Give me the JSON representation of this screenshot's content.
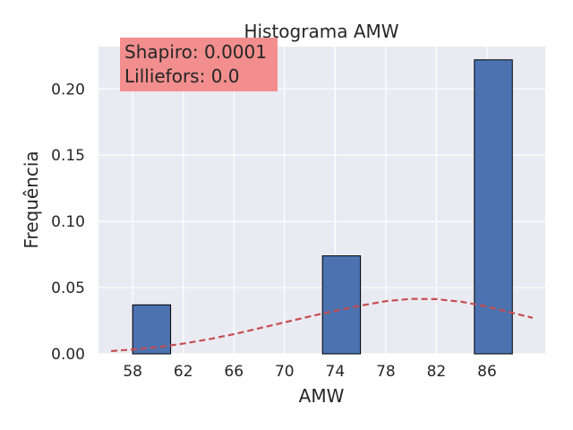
{
  "chart_data": {
    "type": "bar",
    "title": "Histograma AMW",
    "xlabel": "AMW",
    "ylabel": "Frequência",
    "xlim": [
      55.3,
      90.6
    ],
    "ylim": [
      0,
      0.232
    ],
    "x_ticks": [
      "58",
      "62",
      "66",
      "70",
      "74",
      "78",
      "82",
      "86"
    ],
    "y_ticks": [
      "0.00",
      "0.05",
      "0.10",
      "0.15",
      "0.20"
    ],
    "grid": true,
    "bars": [
      {
        "x0": 58.0,
        "x1": 61.0,
        "value": 0.037
      },
      {
        "x0": 61.0,
        "x1": 64.0,
        "value": 0.0
      },
      {
        "x0": 64.0,
        "x1": 67.0,
        "value": 0.0
      },
      {
        "x0": 67.0,
        "x1": 70.0,
        "value": 0.0
      },
      {
        "x0": 70.0,
        "x1": 73.0,
        "value": 0.0
      },
      {
        "x0": 73.0,
        "x1": 76.0,
        "value": 0.074
      },
      {
        "x0": 76.0,
        "x1": 79.0,
        "value": 0.0
      },
      {
        "x0": 79.0,
        "x1": 82.0,
        "value": 0.0
      },
      {
        "x0": 82.0,
        "x1": 85.0,
        "value": 0.0
      },
      {
        "x0": 85.0,
        "x1": 88.0,
        "value": 0.222
      }
    ],
    "normal_curve": {
      "x": [
        56.3,
        58,
        60,
        62,
        64,
        66,
        68,
        70,
        72,
        74,
        76,
        78,
        80,
        82,
        84,
        86,
        88,
        89.6
      ],
      "y": [
        0.0021,
        0.0033,
        0.0051,
        0.0077,
        0.011,
        0.0149,
        0.0193,
        0.0238,
        0.0283,
        0.0325,
        0.0364,
        0.0398,
        0.0415,
        0.0413,
        0.0393,
        0.0357,
        0.031,
        0.0272
      ]
    },
    "annotation": {
      "lines": [
        "Shapiro: 0.0001",
        "Lilliefors: 0.0"
      ]
    },
    "colors": {
      "bar": "#4c72b0",
      "bar_edge": "#000000",
      "curve": "#c44e52",
      "annotation_bg": "#f28e8e",
      "plot_bg": "#eaeaf2",
      "grid": "#ffffff"
    }
  }
}
